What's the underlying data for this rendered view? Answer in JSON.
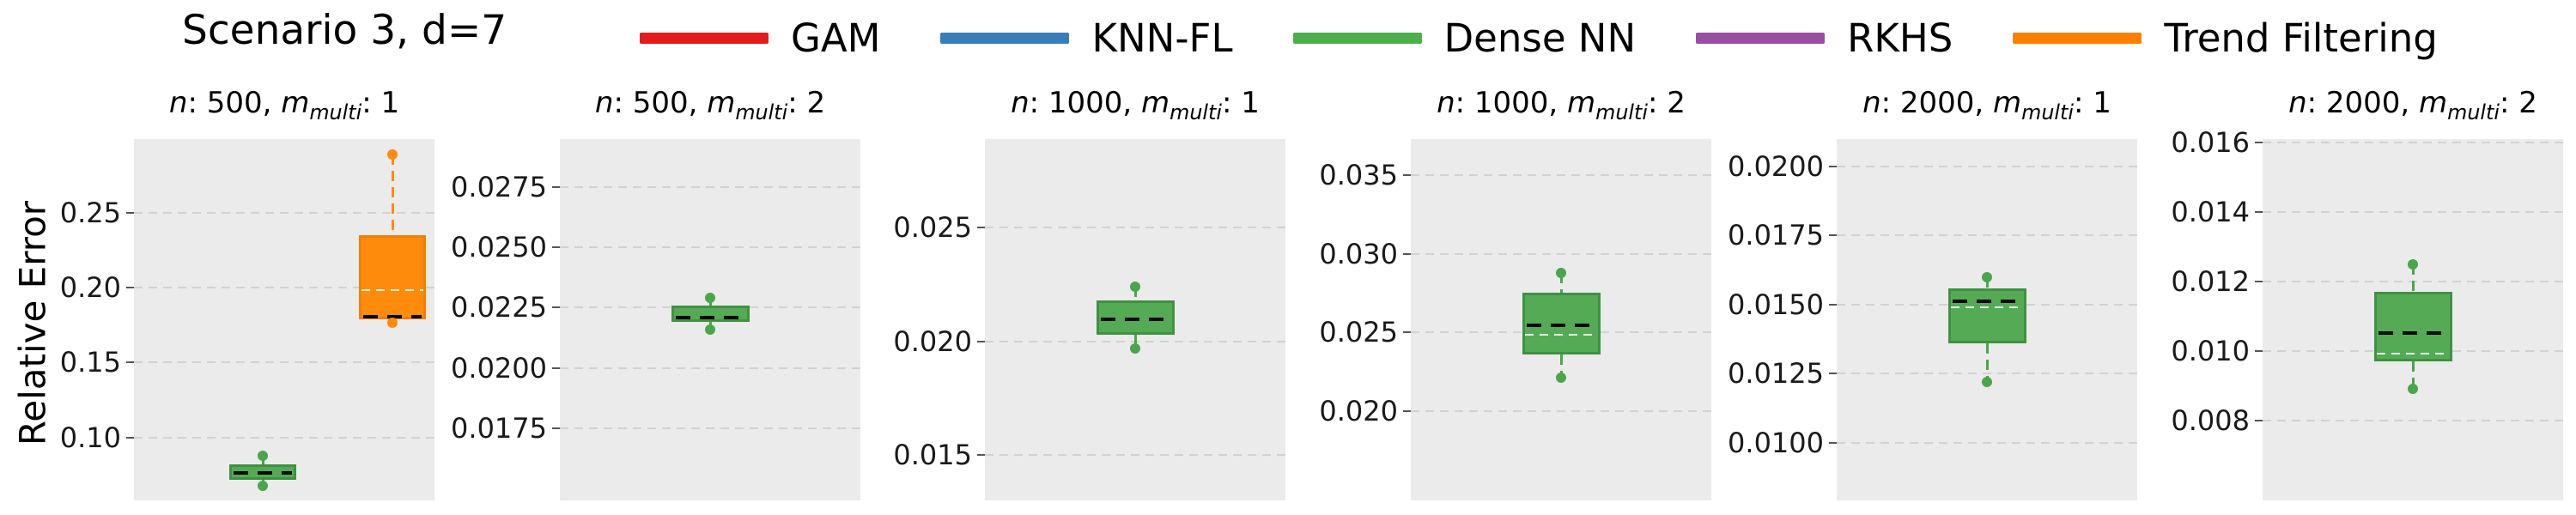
{
  "figure": {
    "title": "Scenario 3, d=7",
    "ylabel": "Relative Error"
  },
  "legend": {
    "items": [
      {
        "label": "GAM",
        "color": "#e41a1c"
      },
      {
        "label": "KNN-FL",
        "color": "#377eb8"
      },
      {
        "label": "Dense NN",
        "color": "#4daf4a"
      },
      {
        "label": "RKHS",
        "color": "#984ea3"
      },
      {
        "label": "Trend Filtering",
        "color": "#ff7f00"
      }
    ]
  },
  "chart_data": [
    {
      "type": "box",
      "title_text": "n: 500, m_multi: 1",
      "title_parts": {
        "n_label": "n",
        "n_value": "500",
        "m_label": "m",
        "m_sub": "multi",
        "m_value": "1"
      },
      "ylim": [
        0.058,
        0.299
      ],
      "yticks": [
        {
          "value": 0.25,
          "label": "0.25"
        },
        {
          "value": 0.2,
          "label": "0.20"
        },
        {
          "value": 0.15,
          "label": "0.15"
        },
        {
          "value": 0.1,
          "label": "0.10"
        }
      ],
      "boxes": [
        {
          "series": "Dense NN",
          "x_frac": 0.429,
          "width_frac": 0.223,
          "q1": 0.072,
          "q3": 0.082,
          "median": 0.078,
          "whisker_low": 0.068,
          "whisker_high": 0.088,
          "fill": "#55ab55",
          "stroke": "#3f9242",
          "accent": "#4aa64a"
        },
        {
          "series": "Trend Filtering",
          "x_frac": 0.861,
          "width_frac": 0.223,
          "q1": 0.179,
          "q3": 0.235,
          "median": 0.182,
          "whisker_low": 0.1765,
          "whisker_high": 0.2885,
          "fill": "#ff8b0c",
          "stroke": "#f57d00",
          "accent": "#ff8b0c"
        }
      ]
    },
    {
      "type": "box",
      "title_text": "n: 500, m_multi: 2",
      "title_parts": {
        "n_label": "n",
        "n_value": "500",
        "m_label": "m",
        "m_sub": "multi",
        "m_value": "2"
      },
      "ylim": [
        0.0145,
        0.0295
      ],
      "yticks": [
        {
          "value": 0.0275,
          "label": "0.0275"
        },
        {
          "value": 0.025,
          "label": "0.0250"
        },
        {
          "value": 0.0225,
          "label": "0.0225"
        },
        {
          "value": 0.02,
          "label": "0.0200"
        },
        {
          "value": 0.0175,
          "label": "0.0175"
        }
      ],
      "boxes": [
        {
          "series": "Dense NN",
          "x_frac": 0.5,
          "width_frac": 0.26,
          "q1": 0.0219,
          "q3": 0.0226,
          "median": 0.0222,
          "whisker_low": 0.0216,
          "whisker_high": 0.0229,
          "fill": "#55ab55",
          "stroke": "#3f9242",
          "accent": "#4aa64a"
        }
      ]
    },
    {
      "type": "box",
      "title_text": "n: 1000, m_multi: 1",
      "title_parts": {
        "n_label": "n",
        "n_value": "1000",
        "m_label": "m",
        "m_sub": "multi",
        "m_value": "1"
      },
      "ylim": [
        0.013,
        0.0289
      ],
      "yticks": [
        {
          "value": 0.025,
          "label": "0.025"
        },
        {
          "value": 0.02,
          "label": "0.020"
        },
        {
          "value": 0.015,
          "label": "0.015"
        }
      ],
      "boxes": [
        {
          "series": "Dense NN",
          "x_frac": 0.5,
          "width_frac": 0.26,
          "q1": 0.0203,
          "q3": 0.0218,
          "median": 0.0211,
          "whisker_low": 0.0197,
          "whisker_high": 0.0224,
          "fill": "#55ab55",
          "stroke": "#3f9242",
          "accent": "#4aa64a"
        }
      ]
    },
    {
      "type": "box",
      "title_text": "n: 1000, m_multi: 2",
      "title_parts": {
        "n_label": "n",
        "n_value": "1000",
        "m_label": "m",
        "m_sub": "multi",
        "m_value": "2"
      },
      "ylim": [
        0.0143,
        0.0373
      ],
      "yticks": [
        {
          "value": 0.035,
          "label": "0.035"
        },
        {
          "value": 0.03,
          "label": "0.030"
        },
        {
          "value": 0.025,
          "label": "0.025"
        },
        {
          "value": 0.02,
          "label": "0.020"
        }
      ],
      "boxes": [
        {
          "series": "Dense NN",
          "x_frac": 0.5,
          "width_frac": 0.26,
          "q1": 0.0236,
          "q3": 0.0275,
          "median": 0.0256,
          "whisker_low": 0.0221,
          "whisker_high": 0.0288,
          "fill": "#55ab55",
          "stroke": "#3f9242",
          "accent": "#4aa64a"
        }
      ]
    },
    {
      "type": "box",
      "title_text": "n: 2000, m_multi: 1",
      "title_parts": {
        "n_label": "n",
        "n_value": "2000",
        "m_label": "m",
        "m_sub": "multi",
        "m_value": "1"
      },
      "ylim": [
        0.0079,
        0.021
      ],
      "yticks": [
        {
          "value": 0.02,
          "label": "0.0200"
        },
        {
          "value": 0.0175,
          "label": "0.0175"
        },
        {
          "value": 0.015,
          "label": "0.0150"
        },
        {
          "value": 0.0125,
          "label": "0.0125"
        },
        {
          "value": 0.01,
          "label": "0.0100"
        }
      ],
      "boxes": [
        {
          "series": "Dense NN",
          "x_frac": 0.5,
          "width_frac": 0.26,
          "q1": 0.0136,
          "q3": 0.0156,
          "median": 0.0152,
          "whisker_low": 0.0122,
          "whisker_high": 0.016,
          "fill": "#55ab55",
          "stroke": "#3f9242",
          "accent": "#4aa64a"
        }
      ]
    },
    {
      "type": "box",
      "title_text": "n: 2000, m_multi: 2",
      "title_parts": {
        "n_label": "n",
        "n_value": "2000",
        "m_label": "m",
        "m_sub": "multi",
        "m_value": "2"
      },
      "ylim": [
        0.0057,
        0.0161
      ],
      "yticks": [
        {
          "value": 0.016,
          "label": "0.016"
        },
        {
          "value": 0.014,
          "label": "0.014"
        },
        {
          "value": 0.012,
          "label": "0.012"
        },
        {
          "value": 0.01,
          "label": "0.010"
        },
        {
          "value": 0.008,
          "label": "0.008"
        }
      ],
      "boxes": [
        {
          "series": "Dense NN",
          "x_frac": 0.5,
          "width_frac": 0.26,
          "q1": 0.0097,
          "q3": 0.0117,
          "median": 0.0106,
          "whisker_low": 0.0089,
          "whisker_high": 0.0125,
          "fill": "#55ab55",
          "stroke": "#3f9242",
          "accent": "#4aa64a"
        }
      ]
    }
  ]
}
